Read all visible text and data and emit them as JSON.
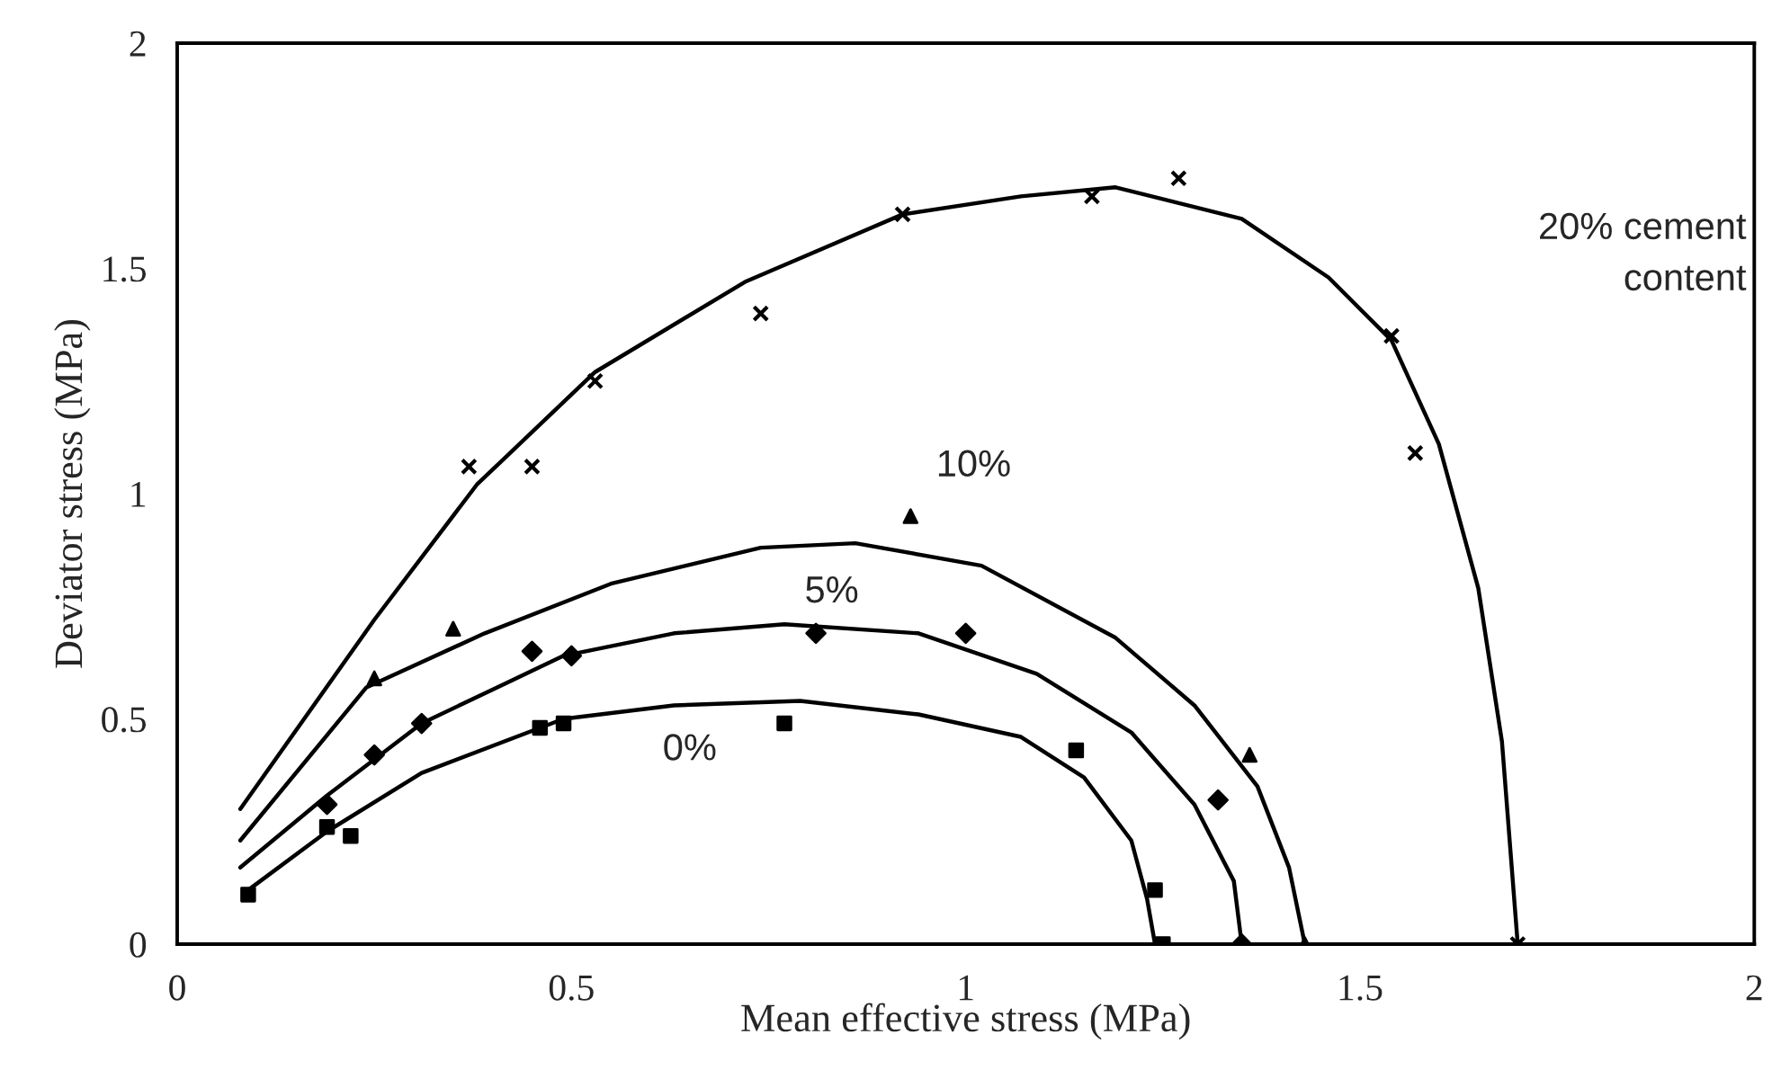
{
  "chart_data": {
    "type": "scatter",
    "xlabel": "Mean effective stress (MPa)",
    "ylabel": "Deviator stress (MPa)",
    "xlim": [
      0,
      2
    ],
    "ylim": [
      0,
      2
    ],
    "xticks": [
      0,
      0.5,
      1,
      1.5,
      2
    ],
    "yticks": [
      0,
      0.5,
      1,
      1.5,
      2
    ],
    "grid": false,
    "series": [
      {
        "marker": "square",
        "color": "#000000",
        "x": [
          0.09,
          0.19,
          0.22,
          0.46,
          0.49,
          0.77,
          1.14,
          1.24,
          1.25
        ],
        "values": [
          0.11,
          0.26,
          0.24,
          0.48,
          0.49,
          0.49,
          0.43,
          0.12,
          0
        ]
      },
      {
        "marker": "diamond",
        "color": "#000000",
        "x": [
          0.19,
          0.25,
          0.31,
          0.45,
          0.5,
          0.81,
          1.0,
          1.32,
          1.35
        ],
        "values": [
          0.31,
          0.42,
          0.49,
          0.65,
          0.64,
          0.69,
          0.69,
          0.32,
          0
        ]
      },
      {
        "marker": "triangle",
        "color": "#000000",
        "x": [
          0.25,
          0.35,
          0.93,
          1.36,
          1.43
        ],
        "values": [
          0.59,
          0.7,
          0.95,
          0.42,
          0
        ]
      },
      {
        "marker": "cross",
        "color": "#000000",
        "x": [
          0.37,
          0.45,
          0.53,
          0.74,
          0.92,
          1.16,
          1.27,
          1.54,
          1.57,
          1.7
        ],
        "values": [
          1.06,
          1.06,
          1.25,
          1.4,
          1.62,
          1.66,
          1.7,
          1.35,
          1.09,
          0
        ]
      },
      {
        "type": "line",
        "marker": "none",
        "line_style": "solid",
        "color": "#000000",
        "x": [
          0.09,
          0.19,
          0.31,
          0.49,
          0.63,
          0.79,
          0.94,
          1.07,
          1.15,
          1.21,
          1.23,
          1.24
        ],
        "values": [
          0.12,
          0.25,
          0.38,
          0.5,
          0.53,
          0.54,
          0.51,
          0.46,
          0.37,
          0.23,
          0.1,
          0
        ]
      },
      {
        "type": "line",
        "marker": "none",
        "line_style": "solid",
        "color": "#000000",
        "x": [
          0.08,
          0.19,
          0.31,
          0.49,
          0.63,
          0.77,
          0.94,
          1.09,
          1.21,
          1.29,
          1.34,
          1.35
        ],
        "values": [
          0.17,
          0.33,
          0.49,
          0.64,
          0.69,
          0.71,
          0.69,
          0.6,
          0.47,
          0.31,
          0.14,
          0
        ]
      },
      {
        "type": "line",
        "marker": "none",
        "line_style": "solid",
        "color": "#000000",
        "x": [
          0.08,
          0.24,
          0.39,
          0.55,
          0.74,
          0.86,
          1.02,
          1.19,
          1.29,
          1.37,
          1.41,
          1.43
        ],
        "values": [
          0.23,
          0.57,
          0.69,
          0.8,
          0.88,
          0.89,
          0.84,
          0.68,
          0.53,
          0.35,
          0.17,
          0
        ]
      },
      {
        "type": "line",
        "marker": "none",
        "line_style": "solid",
        "color": "#000000",
        "x": [
          0.08,
          0.25,
          0.38,
          0.53,
          0.72,
          0.92,
          1.07,
          1.19,
          1.35,
          1.46,
          1.54,
          1.6,
          1.65,
          1.68,
          1.7
        ],
        "values": [
          0.3,
          0.72,
          1.02,
          1.27,
          1.47,
          1.62,
          1.66,
          1.68,
          1.61,
          1.48,
          1.34,
          1.11,
          0.79,
          0.45,
          0
        ]
      }
    ],
    "annotations": [
      "0%",
      "5%",
      "10%",
      "20% cement\ncontent"
    ]
  }
}
